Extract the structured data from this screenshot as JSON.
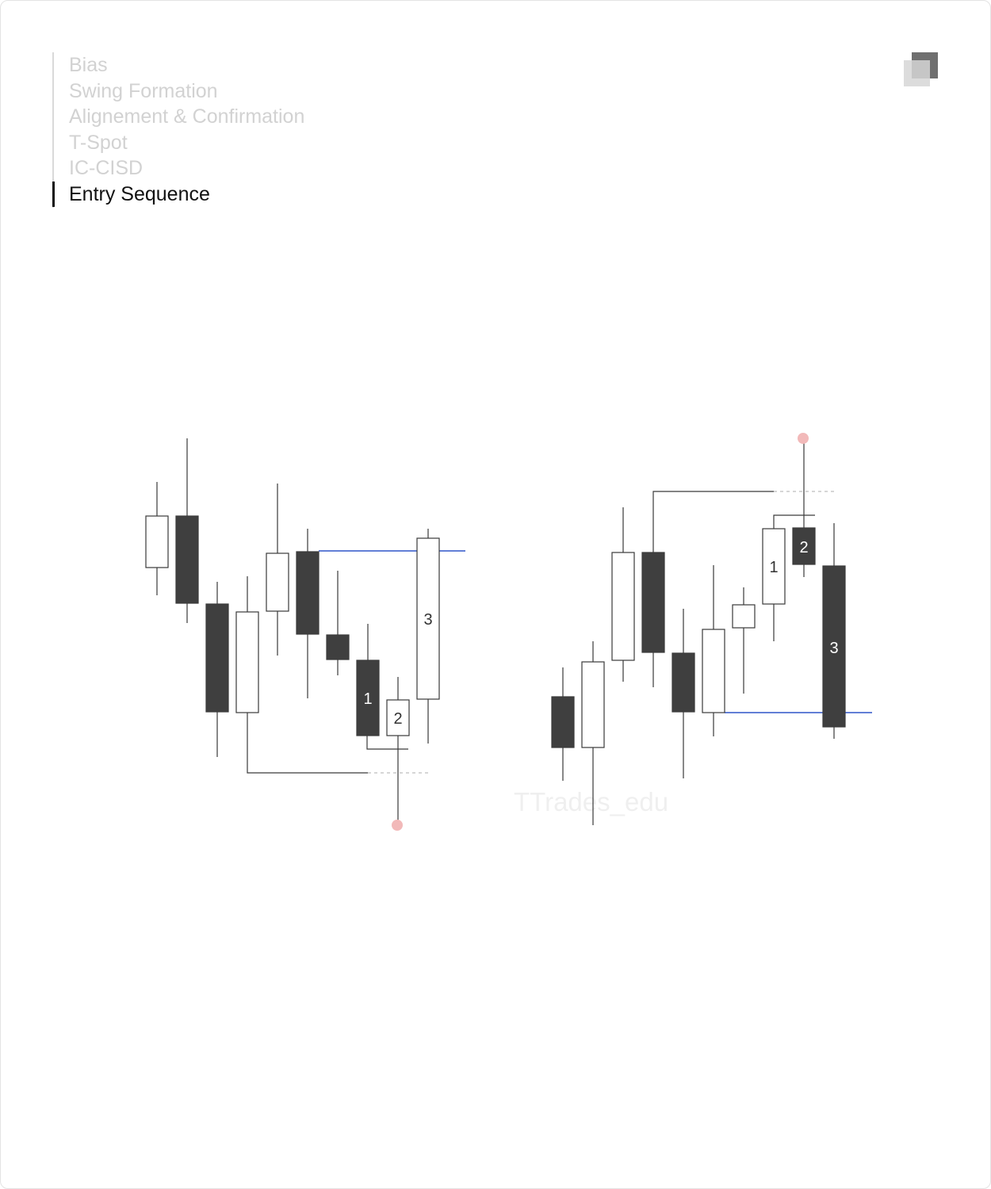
{
  "nav": {
    "items": [
      {
        "label": "Bias",
        "active": false
      },
      {
        "label": "Swing Formation",
        "active": false
      },
      {
        "label": "Alignement & Confirmation",
        "active": false
      },
      {
        "label": "T-Spot",
        "active": false
      },
      {
        "label": "IC-CISD",
        "active": false
      },
      {
        "label": "Entry Sequence",
        "active": true
      }
    ]
  },
  "watermark": "TTrades_edu",
  "colors": {
    "bearish_fill": "#3f3f3f",
    "bullish_fill": "#ffffff",
    "candle_outline": "#3a3a3a",
    "level_line": "#2f55c9",
    "target_dot": "#f2b9b9",
    "dashed_line": "#bdbdbd"
  },
  "diagrams": {
    "left": {
      "direction": "bullish",
      "sequence_labels": [
        "1",
        "2",
        "3"
      ]
    },
    "right": {
      "direction": "bearish",
      "sequence_labels": [
        "1",
        "2",
        "3"
      ]
    }
  }
}
